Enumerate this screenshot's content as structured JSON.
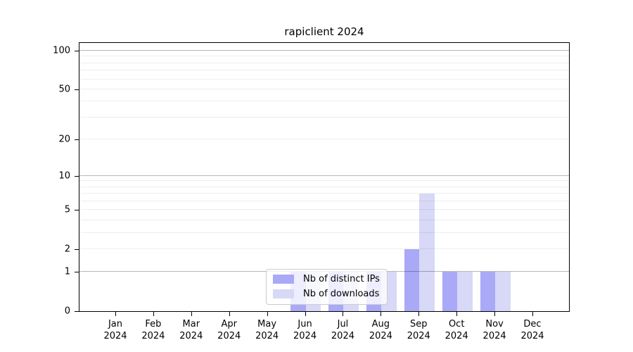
{
  "chart_data": {
    "type": "bar",
    "title": "rapiclient 2024",
    "categories": [
      "Jan",
      "Feb",
      "Mar",
      "Apr",
      "May",
      "Jun",
      "Jul",
      "Aug",
      "Sep",
      "Oct",
      "Nov",
      "Dec"
    ],
    "year_label": "2024",
    "series": [
      {
        "name": "Nb of distinct IPs",
        "color": "#a9a9f7",
        "values": [
          0,
          0,
          0,
          0,
          0,
          1,
          1,
          1,
          2,
          1,
          1,
          0
        ]
      },
      {
        "name": "Nb of downloads",
        "color": "#d8d8f7",
        "values": [
          0,
          0,
          0,
          0,
          0,
          1,
          1,
          1,
          7,
          1,
          1,
          0
        ]
      }
    ],
    "yscale": "log1p",
    "ylim": [
      0,
      115
    ],
    "yticks": [
      0,
      1,
      2,
      5,
      10,
      20,
      50,
      100
    ],
    "gridlines": {
      "major": [
        1,
        10,
        100
      ],
      "minor": [
        2,
        3,
        4,
        5,
        6,
        7,
        8,
        9,
        20,
        30,
        40,
        50,
        60,
        70,
        80,
        90
      ]
    },
    "grid": true,
    "legend_position": "bottom-center",
    "xlabel": "",
    "ylabel": ""
  },
  "legend": {
    "items": [
      {
        "label": "Nb of distinct IPs",
        "color": "#a9a9f7"
      },
      {
        "label": "Nb of downloads",
        "color": "#d8d8f7"
      }
    ]
  },
  "colors": {
    "background": "#ffffff",
    "axis": "#000000",
    "grid_major": "rgba(0,0,0,0.28)",
    "grid_minor": "rgba(0,0,0,0.065)"
  }
}
